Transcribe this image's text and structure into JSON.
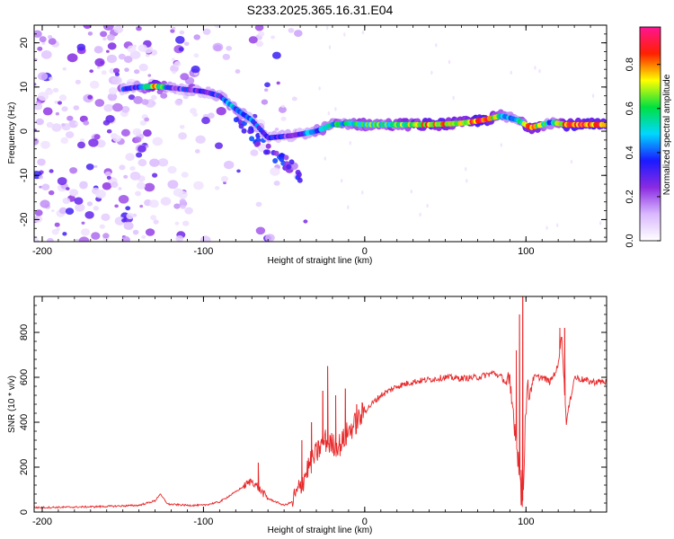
{
  "figure": {
    "title": "S233.2025.365.16.31.E04"
  },
  "chart_data": [
    {
      "type": "heatmap",
      "xlabel": "Height of straight line (km)",
      "ylabel": "Frequency (Hz)",
      "xlim": [
        -205,
        150
      ],
      "ylim": [
        -25,
        24
      ],
      "xticks": [
        -200,
        -100,
        0,
        100
      ],
      "yticks": [
        -20,
        -10,
        0,
        10,
        20
      ],
      "colorbar": {
        "label": "Normalized spectral amplitude",
        "range": [
          0,
          0.97
        ],
        "ticks": [
          0.0,
          0.2,
          0.4,
          0.6,
          0.8
        ],
        "colors": [
          "#ffffff",
          "#d9b8ff",
          "#8a2be2",
          "#1a1aff",
          "#00d8ff",
          "#00e040",
          "#ffff00",
          "#ff2000",
          "#ff1493"
        ]
      },
      "ridge": [
        {
          "x": -150,
          "f": 9.5,
          "a": 0.3
        },
        {
          "x": -140,
          "f": 10.0,
          "a": 0.35
        },
        {
          "x": -130,
          "f": 10.2,
          "a": 0.8
        },
        {
          "x": -120,
          "f": 9.8,
          "a": 0.3
        },
        {
          "x": -100,
          "f": 9.0,
          "a": 0.3
        },
        {
          "x": -90,
          "f": 8.0,
          "a": 0.35
        },
        {
          "x": -80,
          "f": 5.0,
          "a": 0.45
        },
        {
          "x": -70,
          "f": 2.5,
          "a": 0.35
        },
        {
          "x": -60,
          "f": -1.5,
          "a": 0.3
        },
        {
          "x": -45,
          "f": -1.0,
          "a": 0.3
        },
        {
          "x": -30,
          "f": 0.0,
          "a": 0.45
        },
        {
          "x": -20,
          "f": 1.5,
          "a": 0.55
        },
        {
          "x": -10,
          "f": 1.8,
          "a": 0.5
        },
        {
          "x": 0,
          "f": 1.5,
          "a": 0.6
        },
        {
          "x": 20,
          "f": 1.5,
          "a": 0.6
        },
        {
          "x": 40,
          "f": 1.5,
          "a": 0.8
        },
        {
          "x": 60,
          "f": 1.8,
          "a": 0.7
        },
        {
          "x": 73,
          "f": 2.5,
          "a": 0.9
        },
        {
          "x": 85,
          "f": 3.5,
          "a": 0.55
        },
        {
          "x": 95,
          "f": 2.5,
          "a": 0.45
        },
        {
          "x": 103,
          "f": 0.8,
          "a": 0.85
        },
        {
          "x": 115,
          "f": 2.0,
          "a": 0.45
        },
        {
          "x": 125,
          "f": 1.5,
          "a": 0.85
        },
        {
          "x": 150,
          "f": 1.5,
          "a": 0.85
        }
      ]
    },
    {
      "type": "line",
      "xlabel": "Height of straight line (km)",
      "ylabel": "SNR (10 * v/v)",
      "xlim": [
        -205,
        150
      ],
      "ylim": [
        0,
        960
      ],
      "xticks": [
        -200,
        -100,
        0,
        100
      ],
      "yticks": [
        0,
        200,
        400,
        600,
        800
      ],
      "color": "#e8282a",
      "series": [
        {
          "name": "SNR",
          "x": [
            -205,
            -180,
            -160,
            -140,
            -130,
            -127,
            -122,
            -110,
            -100,
            -90,
            -80,
            -70,
            -65,
            -60,
            -50,
            -45,
            -40,
            -35,
            -30,
            -25,
            -20,
            -15,
            -10,
            -5,
            0,
            10,
            20,
            30,
            40,
            50,
            60,
            70,
            80,
            85,
            90,
            93,
            96,
            98,
            100,
            105,
            110,
            115,
            120,
            122,
            125,
            130,
            140,
            150
          ],
          "y": [
            20,
            22,
            25,
            30,
            50,
            80,
            35,
            30,
            30,
            45,
            90,
            140,
            100,
            60,
            30,
            45,
            110,
            200,
            260,
            320,
            300,
            300,
            360,
            400,
            450,
            520,
            560,
            580,
            590,
            600,
            595,
            600,
            620,
            600,
            550,
            400,
            200,
            50,
            500,
            600,
            600,
            580,
            650,
            800,
            400,
            600,
            580,
            580
          ],
          "spikes": [
            {
              "x": -66,
              "y": 220
            },
            {
              "x": -39,
              "y": 320
            },
            {
              "x": -33,
              "y": 400
            },
            {
              "x": -26,
              "y": 540
            },
            {
              "x": -23,
              "y": 650
            },
            {
              "x": -18,
              "y": 520
            },
            {
              "x": -12,
              "y": 550
            },
            {
              "x": -5,
              "y": 480
            },
            {
              "x": 94,
              "y": 720
            },
            {
              "x": 96,
              "y": 880
            },
            {
              "x": 98,
              "y": 960
            },
            {
              "x": 97,
              "y": 30
            },
            {
              "x": 121,
              "y": 820
            },
            {
              "x": 124,
              "y": 820
            }
          ]
        }
      ]
    }
  ]
}
